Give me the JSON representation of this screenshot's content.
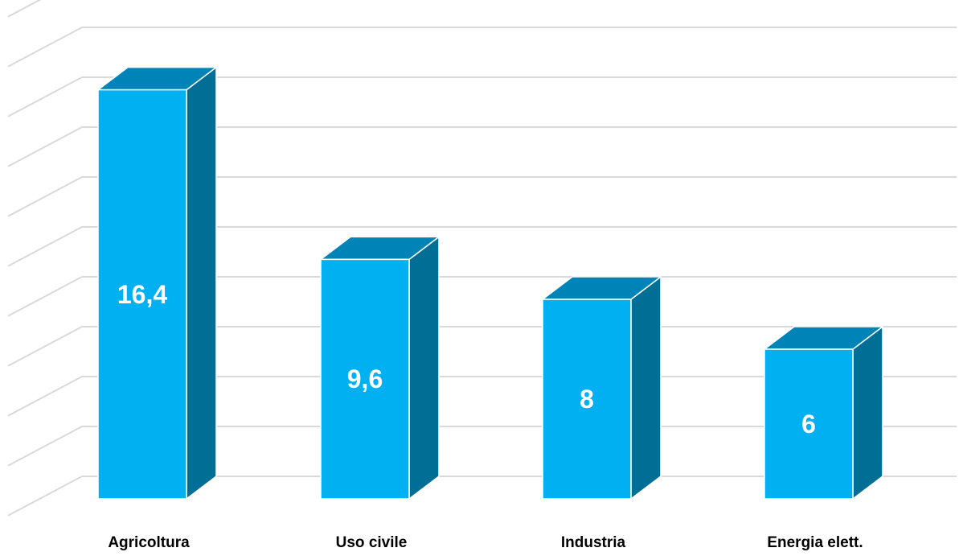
{
  "chart_data": {
    "type": "bar",
    "style": "3d-column",
    "categories": [
      "Agricoltura",
      "Uso civile",
      "Industria",
      "Energia elett."
    ],
    "values": [
      16.4,
      9.6,
      8,
      6
    ],
    "data_labels": [
      "16,4",
      "9,6",
      "8",
      "6"
    ],
    "ylim": [
      0,
      20
    ],
    "grid": true,
    "legend": "none",
    "colors": {
      "bar_front": "#00B0F0",
      "bar_side": "#006E95",
      "bar_top": "#0084B7",
      "bar_edge": "#ffffff",
      "grid": "#D9D9D9",
      "label_text": "#ffffff",
      "category_text": "#000000"
    }
  }
}
